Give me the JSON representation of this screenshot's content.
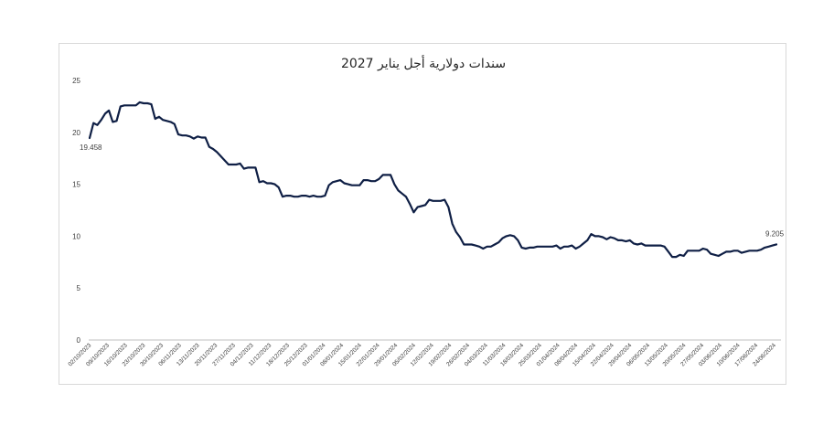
{
  "chart_data": {
    "type": "line",
    "title": "سندات دولارية أجل يناير 2027",
    "xlabel": "",
    "ylabel": "",
    "ylim": [
      0,
      25
    ],
    "y_ticks": [
      0,
      5,
      10,
      15,
      20,
      25
    ],
    "grid": false,
    "legend": "none",
    "colors": {
      "line": "#0f1f45",
      "axis": "#bfbfbf",
      "frame": "#d9d9d9"
    },
    "x_tick_labels": [
      "02/10/2023",
      "09/10/2023",
      "16/10/2023",
      "23/10/2023",
      "30/10/2023",
      "06/11/2023",
      "13/11/2023",
      "20/11/2023",
      "27/11/2023",
      "04/12/2023",
      "11/12/2023",
      "18/12/2023",
      "25/12/2023",
      "01/01/2024",
      "08/01/2024",
      "15/01/2024",
      "22/01/2024",
      "29/01/2024",
      "05/02/2024",
      "12/02/2024",
      "19/02/2024",
      "26/02/2024",
      "04/03/2024",
      "11/03/2024",
      "18/03/2024",
      "25/03/2024",
      "01/04/2024",
      "08/04/2024",
      "15/04/2024",
      "22/04/2024",
      "29/04/2024",
      "06/05/2024",
      "13/05/2024",
      "20/05/2024",
      "27/05/2024",
      "03/06/2024",
      "10/06/2024",
      "17/06/2024",
      "24/06/2024"
    ],
    "annotations": [
      {
        "text": "19.458",
        "point": "first"
      },
      {
        "text": "9.205",
        "point": "last"
      }
    ],
    "series": [
      {
        "values": [
          19.458,
          20.9,
          20.7,
          21.2,
          21.8,
          22.1,
          21.0,
          21.1,
          22.5,
          22.6,
          22.6,
          22.6,
          22.6,
          22.9,
          22.8,
          22.8,
          22.7,
          21.3,
          21.5,
          21.2,
          21.1,
          21.0,
          20.8,
          19.8,
          19.7,
          19.7,
          19.6,
          19.4,
          19.6,
          19.5,
          19.5,
          18.6,
          18.4,
          18.1,
          17.7,
          17.3,
          16.9,
          16.9,
          16.9,
          17.0,
          16.5,
          16.6,
          16.6,
          16.6,
          15.2,
          15.3,
          15.1,
          15.1,
          15.0,
          14.7,
          13.8,
          13.9,
          13.9,
          13.8,
          13.8,
          13.9,
          13.9,
          13.8,
          13.9,
          13.8,
          13.8,
          13.9,
          14.9,
          15.2,
          15.3,
          15.4,
          15.1,
          15.0,
          14.9,
          14.9,
          14.9,
          15.4,
          15.4,
          15.3,
          15.3,
          15.5,
          15.9,
          15.9,
          15.9,
          15.0,
          14.4,
          14.1,
          13.8,
          13.1,
          12.3,
          12.8,
          12.9,
          13.0,
          13.5,
          13.4,
          13.4,
          13.4,
          13.5,
          12.8,
          11.2,
          10.4,
          9.9,
          9.2,
          9.2,
          9.2,
          9.1,
          9.0,
          8.8,
          9.0,
          9.0,
          9.2,
          9.4,
          9.8,
          10.0,
          10.1,
          10.0,
          9.6,
          8.9,
          8.8,
          8.9,
          8.9,
          9.0,
          9.0,
          9.0,
          9.0,
          9.0,
          9.1,
          8.8,
          9.0,
          9.0,
          9.1,
          8.8,
          9.0,
          9.3,
          9.6,
          10.2,
          10.0,
          10.0,
          9.9,
          9.7,
          9.9,
          9.8,
          9.6,
          9.6,
          9.5,
          9.6,
          9.3,
          9.2,
          9.3,
          9.1,
          9.1,
          9.1,
          9.1,
          9.1,
          9.0,
          8.5,
          8.0,
          8.0,
          8.2,
          8.1,
          8.6,
          8.6,
          8.6,
          8.6,
          8.8,
          8.7,
          8.3,
          8.2,
          8.1,
          8.3,
          8.5,
          8.5,
          8.6,
          8.6,
          8.4,
          8.5,
          8.6,
          8.6,
          8.6,
          8.7,
          8.9,
          9.0,
          9.1,
          9.205
        ]
      }
    ]
  }
}
